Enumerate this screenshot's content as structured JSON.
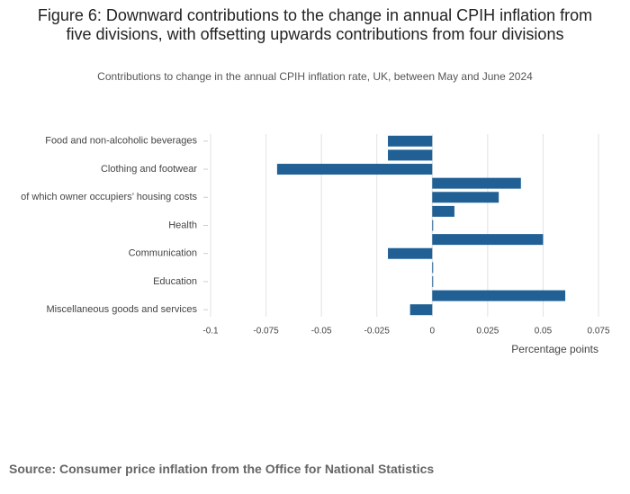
{
  "chart_data": {
    "type": "bar",
    "orientation": "horizontal",
    "title": "Figure 6: Downward contributions to the change in annual CPIH inflation from five divisions, with offsetting upwards contributions from four divisions",
    "subtitle": "Contributions to change in the annual CPIH inflation rate, UK, between May and June 2024",
    "x_label": "Percentage points",
    "source": "Source: Consumer price inflation from the Office for National Statistics",
    "categories": [
      "Food and non-alcoholic beverages",
      null,
      "Clothing and footwear",
      null,
      "of which owner occupiers’ housing costs",
      null,
      "Health",
      null,
      "Communication",
      null,
      "Education",
      null,
      "Miscellaneous goods and services"
    ],
    "values": [
      -0.02,
      -0.02,
      -0.07,
      0.04,
      0.03,
      0.01,
      0,
      0.05,
      -0.02,
      0,
      0,
      0.06,
      -0.01
    ],
    "color": "#206095",
    "xlim": [
      -0.1,
      0.075
    ],
    "xticks": [
      -0.1,
      -0.075,
      -0.05,
      -0.025,
      0,
      0.025,
      0.05,
      0.075
    ],
    "grid": true
  }
}
